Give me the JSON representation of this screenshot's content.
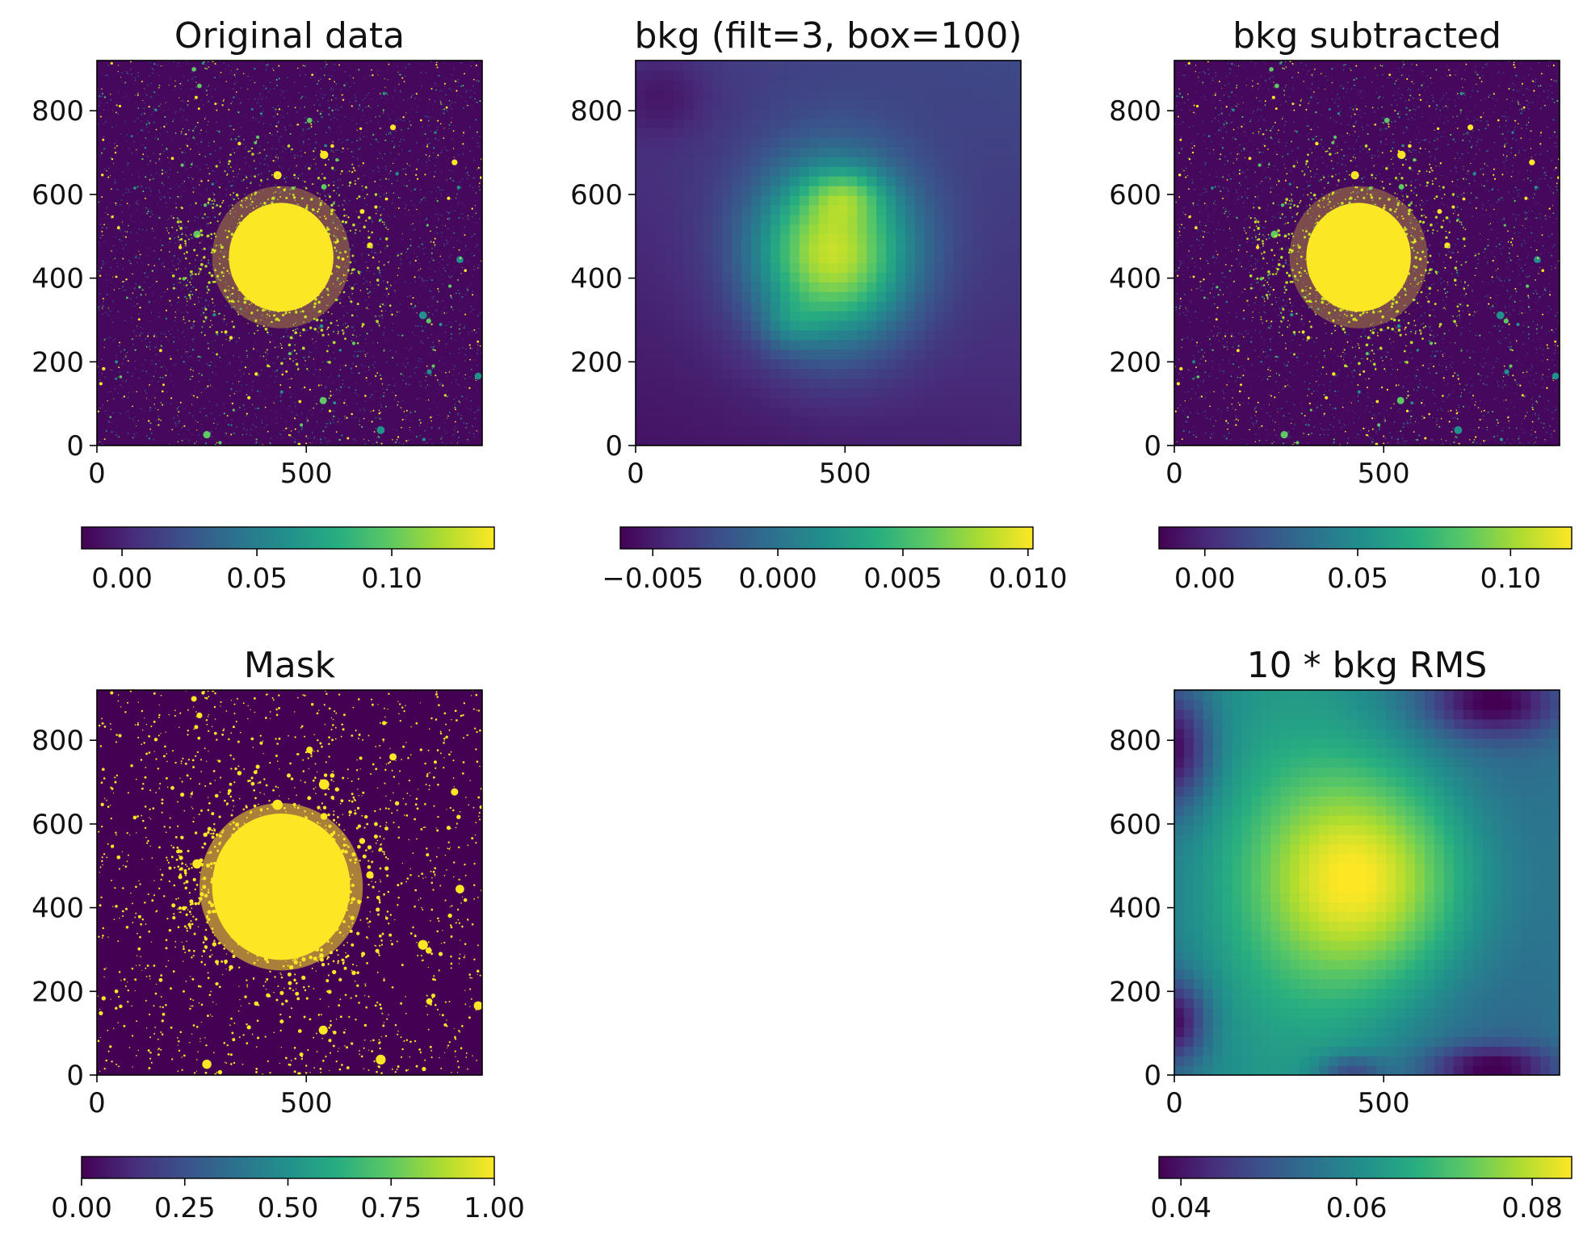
{
  "chart_data": [
    {
      "type": "heatmap",
      "title": "Original data",
      "render": "stars",
      "x_range": [
        0,
        920
      ],
      "y_range": [
        0,
        920
      ],
      "x_ticks": [
        0,
        500
      ],
      "y_ticks": [
        0,
        200,
        400,
        600,
        800
      ],
      "colormap": "viridis",
      "colorbar": {
        "range": [
          -0.015,
          0.138
        ],
        "ticks": [
          0.0,
          0.05,
          0.1
        ],
        "tick_labels": [
          "0.00",
          "0.05",
          "0.10"
        ]
      }
    },
    {
      "type": "heatmap",
      "title": "bkg (filt=3, box=100)",
      "render": "background",
      "x_range": [
        0,
        920
      ],
      "y_range": [
        0,
        920
      ],
      "x_ticks": [
        0,
        500
      ],
      "y_ticks": [
        0,
        200,
        400,
        600,
        800
      ],
      "colormap": "viridis",
      "colorbar": {
        "range": [
          -0.0063,
          0.0102
        ],
        "ticks": [
          -0.005,
          0.0,
          0.005,
          0.01
        ],
        "tick_labels": [
          "−0.005",
          "0.000",
          "0.005",
          "0.010"
        ]
      }
    },
    {
      "type": "heatmap",
      "title": "bkg subtracted",
      "render": "stars",
      "x_range": [
        0,
        920
      ],
      "y_range": [
        0,
        920
      ],
      "x_ticks": [
        0,
        500
      ],
      "y_ticks": [
        0,
        200,
        400,
        600,
        800
      ],
      "colormap": "viridis",
      "colorbar": {
        "range": [
          -0.015,
          0.12
        ],
        "ticks": [
          0.0,
          0.05,
          0.1
        ],
        "tick_labels": [
          "0.00",
          "0.05",
          "0.10"
        ]
      }
    },
    {
      "type": "heatmap",
      "title": "Mask",
      "render": "mask",
      "x_range": [
        0,
        920
      ],
      "y_range": [
        0,
        920
      ],
      "x_ticks": [
        0,
        500
      ],
      "y_ticks": [
        0,
        200,
        400,
        600,
        800
      ],
      "colormap": "viridis",
      "colorbar": {
        "range": [
          0,
          1
        ],
        "ticks": [
          0.0,
          0.25,
          0.5,
          0.75,
          1.0
        ],
        "tick_labels": [
          "0.00",
          "0.25",
          "0.50",
          "0.75",
          "1.00"
        ]
      }
    },
    {
      "type": "heatmap",
      "title": "10 * bkg RMS",
      "render": "rms",
      "x_range": [
        0,
        920
      ],
      "y_range": [
        0,
        920
      ],
      "x_ticks": [
        0,
        500
      ],
      "y_ticks": [
        0,
        200,
        400,
        600,
        800
      ],
      "colormap": "viridis",
      "colorbar": {
        "range": [
          0.0375,
          0.0845
        ],
        "ticks": [
          0.04,
          0.06,
          0.08
        ],
        "tick_labels": [
          "0.04",
          "0.06",
          "0.08"
        ]
      }
    }
  ]
}
